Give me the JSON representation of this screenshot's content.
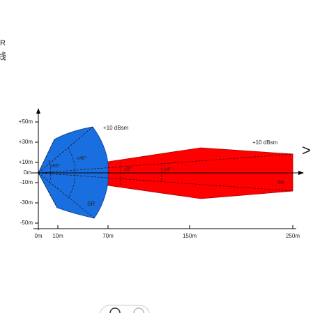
{
  "header": {
    "fragments": [
      "R",
      "线"
    ]
  },
  "diagram": {
    "y_labels": [
      "+50m",
      "+30m",
      "+10m",
      "0m",
      "-10m",
      "-30m",
      "-50m"
    ],
    "x_labels": [
      "0m",
      "10m",
      "70m",
      "150m",
      "250m"
    ],
    "short_range": {
      "label": "SR",
      "rcs": "+10 dBsm",
      "wide_angle": "±60°",
      "narrow_angle": "±40°"
    },
    "long_range": {
      "label": "RR",
      "rcs": "+10 dBsm",
      "wide_angle": "±9°",
      "narrow_angle": "±4°"
    }
  },
  "carousel": {
    "next": ">"
  }
}
